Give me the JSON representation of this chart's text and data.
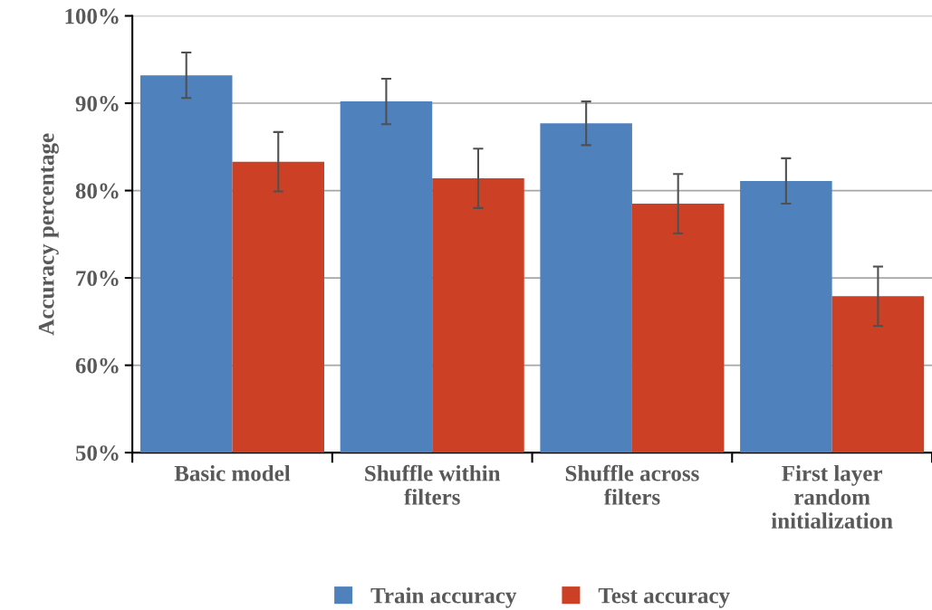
{
  "chart_data": {
    "type": "bar",
    "ylabel": "Accuracy percentage",
    "categories": [
      "Basic model",
      "Shuffle within\nfilters",
      "Shuffle across\nfilters",
      "First layer\nrandom\ninitialization"
    ],
    "series": [
      {
        "name": "Train accuracy",
        "color": "#4f81bd",
        "values": [
          93.2,
          90.2,
          87.7,
          81.1
        ],
        "errors": [
          2.6,
          2.6,
          2.5,
          2.6
        ]
      },
      {
        "name": "Test accuracy",
        "color": "#cc4125",
        "values": [
          83.3,
          81.4,
          78.5,
          67.9
        ],
        "errors": [
          3.4,
          3.4,
          3.4,
          3.4
        ]
      }
    ],
    "ylim": [
      50,
      100
    ],
    "yticks": [
      {
        "value": 50,
        "label": "50%"
      },
      {
        "value": 60,
        "label": "60%"
      },
      {
        "value": 70,
        "label": "70%"
      },
      {
        "value": 80,
        "label": "80%"
      },
      {
        "value": 90,
        "label": "90%"
      },
      {
        "value": 100,
        "label": "100%"
      }
    ],
    "grid": "y",
    "legend": "bottom"
  }
}
